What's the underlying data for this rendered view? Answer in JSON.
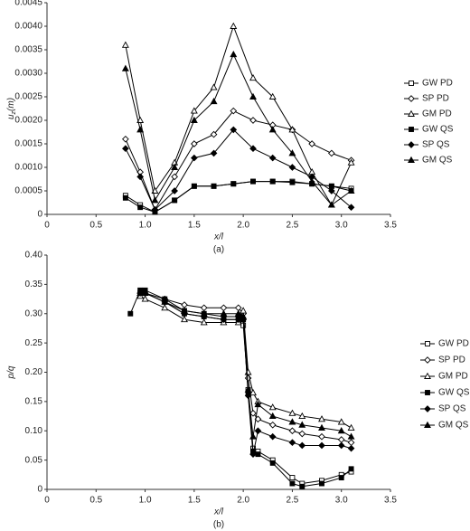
{
  "chart_data": [
    {
      "type": "line",
      "caption": "(a)",
      "xlabel": "x/l",
      "ylabel_parts": [
        "u",
        "z",
        "(m)"
      ],
      "xlim": [
        0,
        3.5
      ],
      "ylim": [
        0,
        0.0045
      ],
      "xticks": [
        0,
        0.5,
        {
          "value": 1,
          "label": "1.0"
        },
        1.5,
        {
          "value": 2,
          "label": "2.0"
        },
        2.5,
        {
          "value": 3,
          "label": "3.0"
        },
        3.5
      ],
      "yticks": [
        0,
        0.0005,
        {
          "value": 0.001,
          "label": "0.0010"
        },
        0.0015,
        {
          "value": 0.002,
          "label": "0.0020"
        },
        0.0025,
        {
          "value": 0.003,
          "label": "0.0030"
        },
        0.0035,
        {
          "value": 0.004,
          "label": "0.0040"
        },
        0.0045
      ],
      "x": [
        0.8,
        0.95,
        1.1,
        1.3,
        1.5,
        1.7,
        1.9,
        2.1,
        2.3,
        2.5,
        2.7,
        2.9,
        3.1
      ],
      "series": [
        {
          "name": "GW PD",
          "color": "#000000",
          "marker": "square",
          "filled": false,
          "values": [
            0.0004,
            0.0002,
            5e-05,
            0.0003,
            0.0006,
            0.0006,
            0.00065,
            0.0007,
            0.0007,
            0.0007,
            0.00065,
            0.0006,
            0.00055
          ]
        },
        {
          "name": "SP PD",
          "color": "#000000",
          "marker": "diamond",
          "filled": false,
          "values": [
            0.0016,
            0.0009,
            0.0001,
            0.0008,
            0.0015,
            0.0017,
            0.0022,
            0.002,
            0.0019,
            0.0018,
            0.0015,
            0.0013,
            0.00115
          ]
        },
        {
          "name": "GM PD",
          "color": "#000000",
          "marker": "triangle",
          "filled": false,
          "values": [
            0.0036,
            0.002,
            0.0005,
            0.0011,
            0.0022,
            0.0027,
            0.004,
            0.0029,
            0.0025,
            0.0018,
            0.0009,
            0.0002,
            0.0011
          ]
        },
        {
          "name": "GW QS",
          "color": "#000000",
          "marker": "square",
          "filled": true,
          "values": [
            0.00035,
            0.00015,
            5e-05,
            0.0003,
            0.0006,
            0.0006,
            0.00065,
            0.0007,
            0.0007,
            0.00068,
            0.00065,
            0.0006,
            0.0005
          ]
        },
        {
          "name": "SP QS",
          "color": "#000000",
          "marker": "diamond",
          "filled": true,
          "values": [
            0.0014,
            0.0008,
            0.0001,
            0.0005,
            0.0012,
            0.0013,
            0.0018,
            0.0014,
            0.0012,
            0.001,
            0.0008,
            0.0005,
            0.00015
          ]
        },
        {
          "name": "GM QS",
          "color": "#000000",
          "marker": "triangle",
          "filled": true,
          "values": [
            0.0031,
            0.0018,
            0.0003,
            0.001,
            0.002,
            0.0024,
            0.0034,
            0.0025,
            0.0018,
            0.0013,
            0.0007,
            0.0002,
            0.0005
          ]
        }
      ]
    },
    {
      "type": "line",
      "caption": "(b)",
      "xlabel": "x/l",
      "ylabel_parts": [
        "p/q"
      ],
      "xlim": [
        0,
        3.5
      ],
      "ylim": [
        0,
        0.4
      ],
      "xticks": [
        0,
        0.5,
        {
          "value": 1,
          "label": "1.0"
        },
        1.5,
        {
          "value": 2,
          "label": "2.0"
        },
        2.5,
        {
          "value": 3,
          "label": "3.0"
        },
        3.5
      ],
      "yticks": [
        0,
        0.05,
        {
          "value": 0.1,
          "label": "0.10"
        },
        0.15,
        {
          "value": 0.2,
          "label": "0.20"
        },
        0.25,
        {
          "value": 0.3,
          "label": "0.30"
        },
        0.35,
        {
          "value": 0.4,
          "label": "0.40"
        }
      ],
      "x": [
        0.85,
        0.95,
        1.0,
        1.2,
        1.4,
        1.6,
        1.8,
        1.95,
        2.0,
        2.05,
        2.1,
        2.15,
        2.3,
        2.5,
        2.6,
        2.8,
        3.0,
        3.1
      ],
      "series": [
        {
          "name": "GW PD",
          "color": "#000000",
          "marker": "square",
          "filled": false,
          "values": [
            null,
            0.335,
            0.335,
            0.32,
            0.3,
            0.295,
            0.29,
            0.29,
            0.28,
            0.17,
            0.07,
            0.065,
            0.05,
            0.02,
            0.01,
            0.015,
            0.025,
            0.03
          ]
        },
        {
          "name": "SP PD",
          "color": "#000000",
          "marker": "diamond",
          "filled": false,
          "values": [
            null,
            0.335,
            0.335,
            0.325,
            0.315,
            0.31,
            0.31,
            0.31,
            0.3,
            0.19,
            0.13,
            0.12,
            0.11,
            0.1,
            0.095,
            0.09,
            0.085,
            0.08
          ]
        },
        {
          "name": "GM PD",
          "color": "#000000",
          "marker": "triangle",
          "filled": false,
          "values": [
            null,
            0.33,
            0.325,
            0.31,
            0.29,
            0.285,
            0.285,
            0.285,
            0.305,
            0.2,
            0.165,
            0.15,
            0.14,
            0.13,
            0.125,
            0.12,
            0.115,
            0.105
          ]
        },
        {
          "name": "GW QS",
          "color": "#000000",
          "marker": "square",
          "filled": true,
          "values": [
            0.3,
            0.34,
            0.34,
            0.325,
            0.305,
            0.3,
            0.295,
            0.295,
            0.29,
            0.165,
            0.065,
            0.06,
            0.045,
            0.01,
            0.005,
            0.01,
            0.02,
            0.035
          ]
        },
        {
          "name": "SP QS",
          "color": "#000000",
          "marker": "diamond",
          "filled": true,
          "values": [
            null,
            0.335,
            0.335,
            0.32,
            0.3,
            0.295,
            0.29,
            0.29,
            0.29,
            0.16,
            0.06,
            0.1,
            0.09,
            0.08,
            0.075,
            0.075,
            0.075,
            0.07
          ]
        },
        {
          "name": "GM QS",
          "color": "#000000",
          "marker": "triangle",
          "filled": true,
          "values": [
            null,
            0.335,
            0.335,
            0.32,
            0.305,
            0.3,
            0.3,
            0.3,
            0.295,
            0.17,
            0.09,
            0.145,
            0.125,
            0.115,
            0.11,
            0.105,
            0.1,
            0.09
          ]
        }
      ]
    }
  ]
}
